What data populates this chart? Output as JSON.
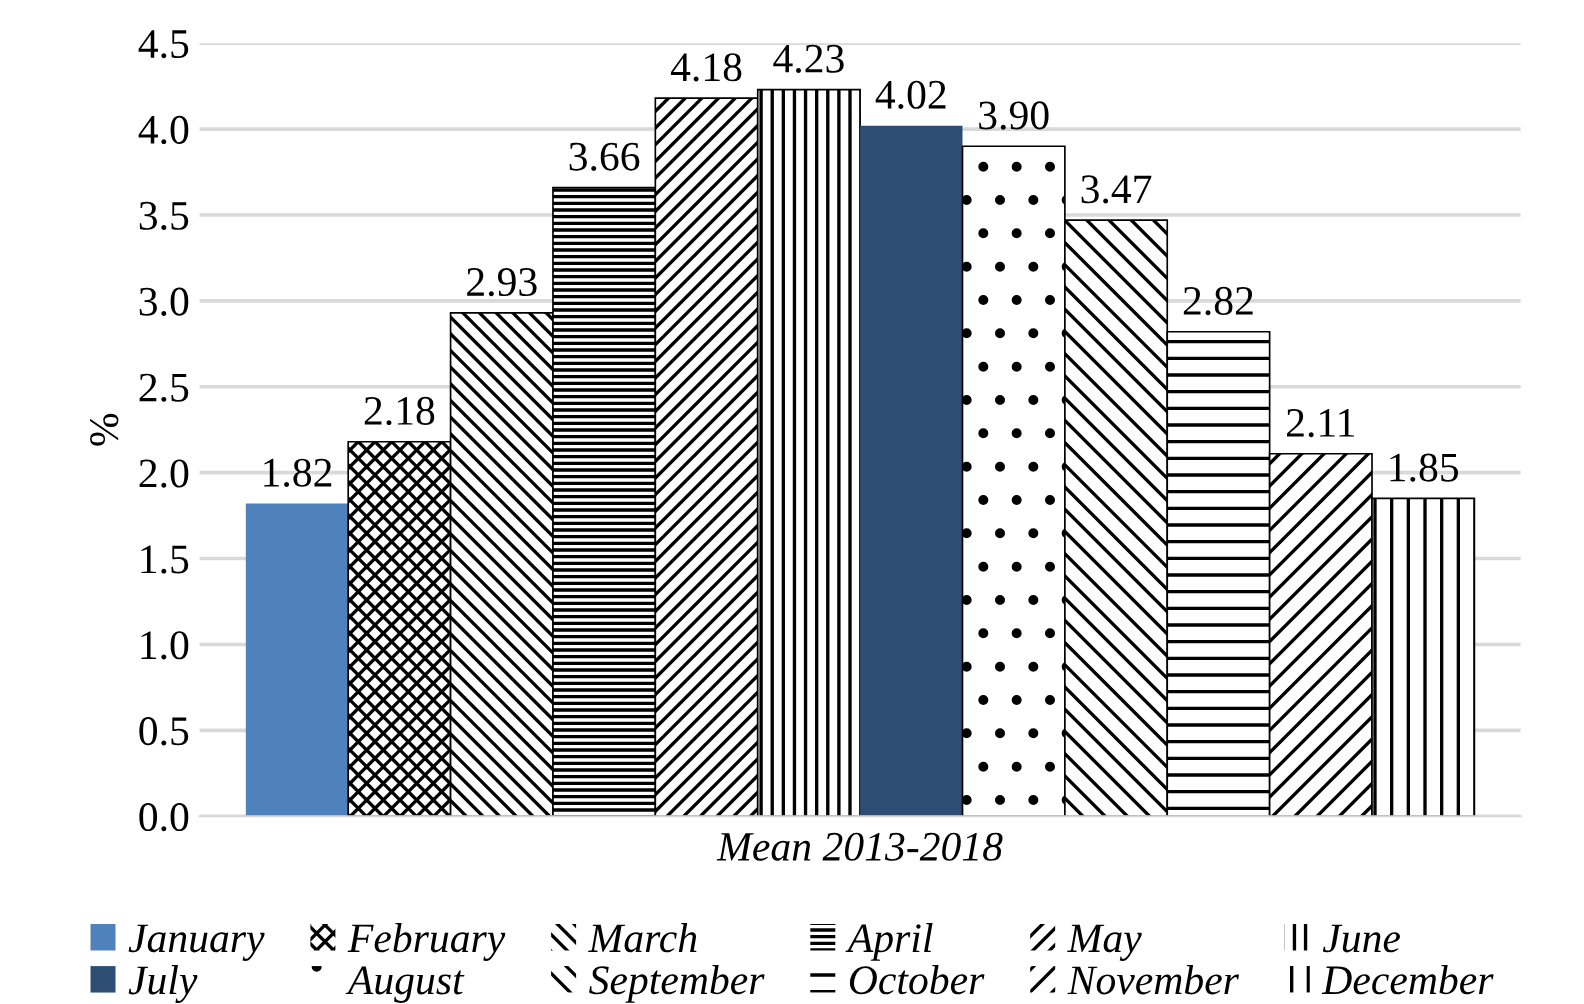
{
  "chart_data": {
    "type": "bar",
    "xlabel": "Mean 2013-2018",
    "ylabel": "%",
    "categories": [
      null
    ],
    "series": [
      {
        "name": "January",
        "color": "#4f81bd",
        "values": [
          1.82
        ],
        "value_labels": [
          "1.82"
        ]
      },
      {
        "name": "February",
        "color": "#000000",
        "values": [
          2.18
        ],
        "value_labels": [
          "2.18"
        ]
      },
      {
        "name": "March",
        "color": "#000000",
        "values": [
          2.93
        ],
        "value_labels": [
          "2.93"
        ]
      },
      {
        "name": "April",
        "color": "#000000",
        "values": [
          3.66
        ],
        "value_labels": [
          "3.66"
        ]
      },
      {
        "name": "May",
        "color": "#000000",
        "values": [
          4.18
        ],
        "value_labels": [
          "4.18"
        ]
      },
      {
        "name": "June",
        "color": "#000000",
        "values": [
          4.23
        ],
        "value_labels": [
          "4.23"
        ]
      },
      {
        "name": "July",
        "color": "#2e4d74",
        "values": [
          4.02
        ],
        "value_labels": [
          "4.02"
        ]
      },
      {
        "name": "August",
        "color": "#000000",
        "values": [
          3.9
        ],
        "value_labels": [
          "3.90"
        ]
      },
      {
        "name": "September",
        "color": "#000000",
        "values": [
          3.47
        ],
        "value_labels": [
          "3.47"
        ]
      },
      {
        "name": "October",
        "color": "#000000",
        "values": [
          2.82
        ],
        "value_labels": [
          "2.82"
        ]
      },
      {
        "name": "November",
        "color": "#000000",
        "values": [
          2.11
        ],
        "value_labels": [
          "2.11"
        ]
      },
      {
        "name": "December",
        "color": "#000000",
        "values": [
          1.85
        ],
        "value_labels": [
          "1.85"
        ]
      }
    ],
    "ylim": [
      0,
      4.5
    ],
    "yticks": [
      {
        "value": 0,
        "label": "0.0"
      },
      {
        "value": 0.5,
        "label": "0.5"
      },
      {
        "value": 1,
        "label": "1.0"
      },
      {
        "value": 1.5,
        "label": "1.5"
      },
      {
        "value": 2,
        "label": "2.0"
      },
      {
        "value": 2.5,
        "label": "2.5"
      },
      {
        "value": 3,
        "label": "3.0"
      },
      {
        "value": 3.5,
        "label": "3.5"
      },
      {
        "value": 4,
        "label": "4.0"
      },
      {
        "value": 4.5,
        "label": "4.5"
      }
    ],
    "grid": "y",
    "legend": "bottom"
  }
}
